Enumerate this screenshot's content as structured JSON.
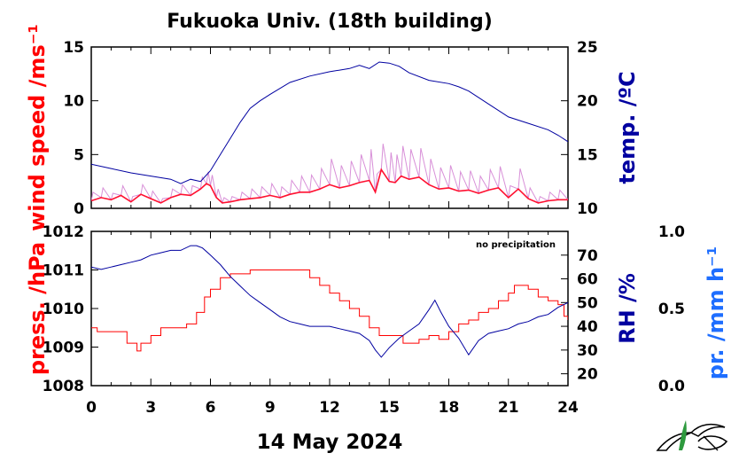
{
  "title": "Fukuoka Univ. (18th building)",
  "date_label": "14 May 2024",
  "chart_data": [
    {
      "type": "line",
      "title": "Fukuoka Univ. (18th building)",
      "xlabel": "",
      "xlim": [
        0,
        24
      ],
      "x_ticks": [
        "0",
        "3",
        "6",
        "9",
        "12",
        "15",
        "18",
        "21",
        "24"
      ],
      "left_axis": {
        "label": "wind speed /ms⁻¹",
        "color": "#ff0000",
        "ylim": [
          0,
          15
        ],
        "ticks": [
          "0",
          "5",
          "10",
          "15"
        ]
      },
      "right_axis": {
        "label": "temp. /ºC",
        "color": "#0000a0",
        "ylim": [
          10,
          25
        ],
        "ticks": [
          "10",
          "15",
          "20",
          "25"
        ]
      },
      "series": [
        {
          "axis": "left",
          "color": "#ff1030",
          "style": "mean",
          "x": [
            0,
            0.5,
            1,
            1.5,
            2,
            2.5,
            3,
            3.5,
            4,
            4.5,
            5,
            5.5,
            5.8,
            6,
            6.3,
            6.6,
            7,
            7.5,
            8,
            8.5,
            9,
            9.5,
            10,
            10.5,
            11,
            11.5,
            12,
            12.5,
            13,
            13.5,
            14,
            14.3,
            14.6,
            15,
            15.3,
            15.6,
            16,
            16.5,
            17,
            17.5,
            18,
            18.5,
            19,
            19.5,
            20,
            20.5,
            21,
            21.5,
            22,
            22.5,
            23,
            23.5,
            24
          ],
          "y": [
            0.7,
            1.0,
            0.8,
            1.2,
            0.6,
            1.3,
            0.9,
            0.5,
            1.0,
            1.3,
            1.2,
            1.8,
            2.3,
            2.1,
            1.0,
            0.5,
            0.6,
            0.8,
            0.9,
            1.0,
            1.2,
            1.0,
            1.3,
            1.5,
            1.5,
            1.8,
            2.2,
            1.9,
            2.1,
            2.4,
            2.6,
            1.5,
            3.6,
            2.5,
            2.4,
            3.0,
            2.7,
            2.9,
            2.2,
            1.8,
            1.9,
            1.6,
            1.7,
            1.4,
            1.7,
            1.9,
            1.0,
            1.8,
            0.9,
            0.5,
            0.7,
            0.8,
            0.8
          ]
        },
        {
          "axis": "left",
          "color": "#d890d8",
          "style": "gust",
          "x": [
            0,
            0.5,
            1,
            1.5,
            2,
            2.5,
            3,
            3.5,
            4,
            4.5,
            5,
            5.5,
            5.8,
            6,
            6.3,
            6.6,
            7,
            7.5,
            8,
            8.5,
            9,
            9.5,
            10,
            10.5,
            11,
            11.5,
            12,
            12.5,
            13,
            13.5,
            14,
            14.3,
            14.6,
            15,
            15.3,
            15.6,
            16,
            16.5,
            17,
            17.5,
            18,
            18.5,
            19,
            19.5,
            20,
            20.5,
            21,
            21.5,
            22,
            22.5,
            23,
            23.5,
            24
          ],
          "y": [
            1.5,
            1.9,
            1.4,
            2.1,
            1.1,
            2.2,
            1.6,
            0.9,
            1.8,
            2.2,
            2.1,
            2.9,
            3.4,
            3.1,
            1.8,
            1.0,
            1.1,
            1.5,
            1.8,
            2.0,
            2.3,
            2.0,
            2.6,
            3.0,
            3.1,
            3.7,
            4.6,
            4.0,
            4.4,
            5.0,
            5.5,
            3.2,
            6.0,
            5.2,
            5.0,
            5.8,
            5.5,
            5.6,
            4.6,
            3.8,
            4.0,
            3.4,
            3.5,
            3.0,
            3.6,
            3.9,
            2.1,
            3.7,
            1.9,
            1.1,
            1.5,
            1.7,
            1.6
          ]
        },
        {
          "axis": "right",
          "color": "#0000a0",
          "name": "temp.",
          "x": [
            0,
            1,
            2,
            3,
            4,
            4.5,
            5,
            5.5,
            6,
            6.5,
            7,
            7.5,
            8,
            8.5,
            9,
            10,
            11,
            12,
            13,
            13.5,
            14,
            14.5,
            15,
            15.5,
            16,
            17,
            18,
            18.5,
            19,
            20,
            21,
            22,
            23,
            23.5,
            24
          ],
          "y": [
            14.1,
            13.7,
            13.3,
            13.0,
            12.7,
            12.3,
            12.7,
            12.5,
            13.5,
            15.0,
            16.5,
            18.0,
            19.3,
            20.0,
            20.6,
            21.7,
            22.3,
            22.7,
            23.0,
            23.3,
            23.0,
            23.6,
            23.5,
            23.2,
            22.6,
            21.9,
            21.6,
            21.3,
            20.9,
            19.7,
            18.5,
            17.9,
            17.3,
            16.8,
            16.2
          ]
        }
      ]
    },
    {
      "type": "line",
      "xlabel": "14 May 2024",
      "xlim": [
        0,
        24
      ],
      "x_ticks": [
        "0",
        "3",
        "6",
        "9",
        "12",
        "15",
        "18",
        "21",
        "24"
      ],
      "annotation": "no precipitation",
      "left_axis": {
        "label": "press. /hPa",
        "color": "#ff0000",
        "ylim": [
          1008,
          1012
        ],
        "ticks": [
          "1008",
          "1009",
          "1010",
          "1011",
          "1012"
        ]
      },
      "right_axis": {
        "label": "RH /%",
        "color": "#0000a0",
        "ylim": [
          15,
          80
        ],
        "ticks": [
          "20",
          "30",
          "40",
          "50",
          "60",
          "70"
        ]
      },
      "far_right_axis": {
        "label": "pr. /mm h⁻¹",
        "color": "#1e6eff",
        "ylim": [
          0,
          1
        ],
        "ticks": [
          "0.0",
          "0.5",
          "1.0"
        ]
      },
      "series": [
        {
          "axis": "left",
          "color": "#ff0000",
          "name": "press.",
          "step": true,
          "x": [
            0,
            0.3,
            1,
            1.8,
            2.3,
            2.5,
            3,
            3.5,
            4,
            4.8,
            5.3,
            5.7,
            6,
            6.5,
            7,
            7.5,
            8,
            8.5,
            9,
            10,
            10.5,
            11,
            11.5,
            12,
            12.5,
            13,
            13.5,
            14,
            14.5,
            15,
            15.7,
            16.5,
            17,
            17.5,
            18,
            18.5,
            19,
            19.5,
            20,
            20.5,
            21,
            21.3,
            21.7,
            22,
            22.5,
            23,
            23.5,
            23.8,
            24
          ],
          "y": [
            1009.5,
            1009.4,
            1009.4,
            1009.1,
            1008.9,
            1009.1,
            1009.3,
            1009.5,
            1009.5,
            1009.6,
            1009.9,
            1010.3,
            1010.5,
            1010.8,
            1010.9,
            1010.9,
            1011.0,
            1011.0,
            1011.0,
            1011.0,
            1011.0,
            1010.8,
            1010.6,
            1010.4,
            1010.2,
            1010.0,
            1009.8,
            1009.5,
            1009.3,
            1009.3,
            1009.1,
            1009.2,
            1009.3,
            1009.2,
            1009.4,
            1009.6,
            1009.7,
            1009.9,
            1010.0,
            1010.2,
            1010.4,
            1010.6,
            1010.6,
            1010.5,
            1010.3,
            1010.2,
            1010.1,
            1009.8,
            1009.7
          ]
        },
        {
          "axis": "right",
          "color": "#0000a0",
          "name": "RH",
          "x": [
            0,
            0.5,
            1,
            1.5,
            2,
            2.5,
            3,
            3.5,
            4,
            4.5,
            5,
            5.3,
            5.6,
            6,
            6.5,
            7,
            7.5,
            8,
            8.5,
            9,
            9.5,
            10,
            10.5,
            11,
            11.5,
            12,
            12.5,
            13,
            13.5,
            14,
            14.3,
            14.6,
            15,
            15.5,
            16,
            16.5,
            17,
            17.3,
            17.6,
            18,
            18.5,
            19,
            19.5,
            20,
            20.5,
            21,
            21.5,
            22,
            22.5,
            23,
            23.5,
            24
          ],
          "y": [
            65,
            64,
            65,
            66,
            67,
            68,
            70,
            71,
            72,
            72,
            74,
            74,
            73,
            70,
            66,
            61,
            57,
            53,
            50,
            47,
            44,
            42,
            41,
            40,
            40,
            40,
            39,
            38,
            37,
            34,
            30,
            27,
            31,
            35,
            38,
            41,
            47,
            51,
            46,
            40,
            35,
            28,
            34,
            37,
            38,
            39,
            41,
            42,
            44,
            45,
            48,
            50
          ]
        }
      ]
    }
  ]
}
